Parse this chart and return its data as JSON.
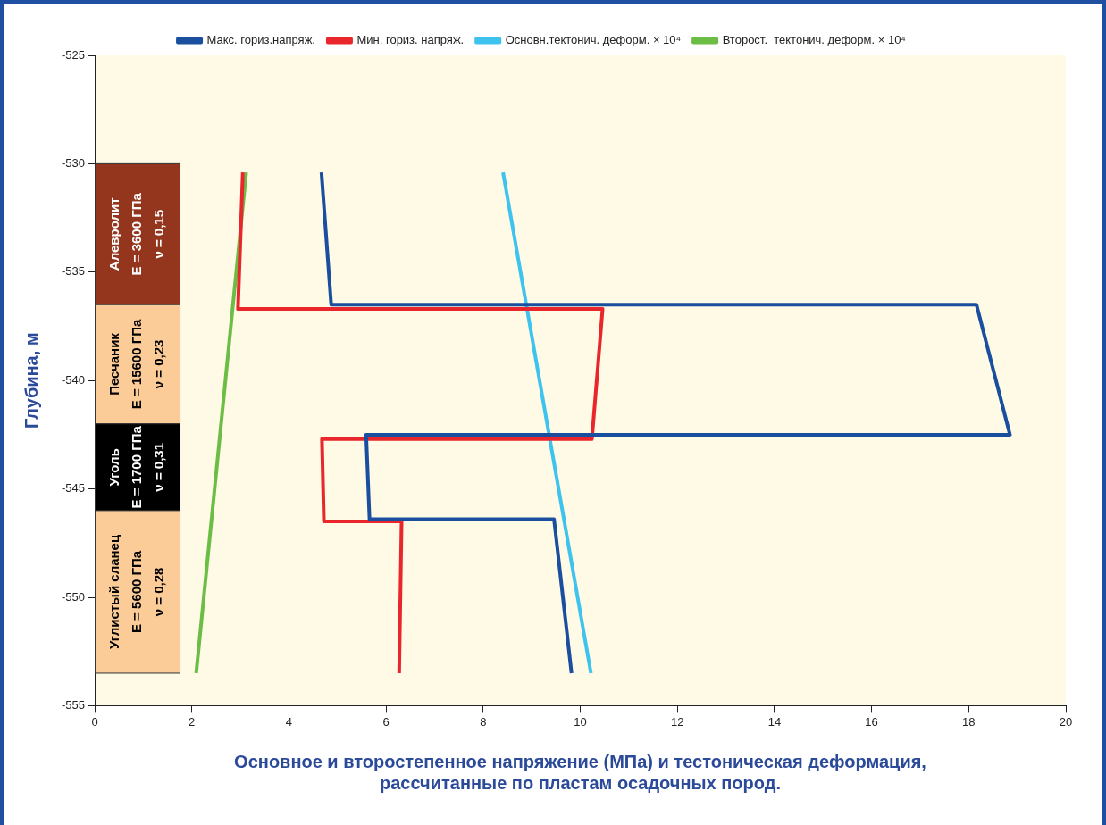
{
  "chart_data": {
    "type": "line",
    "xlabel": "Основное и второстепенное напряжение (МПа) и тестоническая деформация,\nрассчитанные по пластам осадочных пород.",
    "ylabel": "Глубина, м",
    "xlim": [
      0,
      20
    ],
    "xticks": [
      0,
      2,
      4,
      6,
      8,
      10,
      12,
      14,
      16,
      18,
      20
    ],
    "ylim": [
      -555,
      -525
    ],
    "yticks": [
      -555,
      -550,
      -545,
      -540,
      -535,
      -530,
      -525
    ],
    "grid": false,
    "legend": "top",
    "marker": "none",
    "line_style": "solid",
    "series": [
      {
        "name": "Макс. гориз.напряж.",
        "color": "#1a4e9e",
        "x": [
          4.67,
          4.87,
          18.16,
          18.85,
          5.59,
          5.66,
          9.46,
          9.82
        ],
        "values": [
          -530.4,
          -536.5,
          -536.5,
          -542.5,
          -542.5,
          -546.4,
          -546.4,
          -553.5
        ]
      },
      {
        "name": "Мин. гориз. напряж.",
        "color": "#e8262c",
        "x": [
          3.05,
          2.95,
          10.46,
          10.24,
          4.68,
          4.72,
          6.32,
          6.27
        ],
        "values": [
          -530.4,
          -536.7,
          -536.7,
          -542.7,
          -542.7,
          -546.5,
          -546.5,
          -553.5
        ]
      },
      {
        "name": "Основн.тектонич. деформ. × 10⁴",
        "color": "#3ec3ee",
        "x": [
          8.41,
          10.22
        ],
        "values": [
          -530.4,
          -553.5
        ]
      },
      {
        "name": "Второст.  тектонич. деформ. × 10⁴",
        "color": "#6cbd45",
        "x": [
          3.12,
          2.09
        ],
        "values": [
          -530.4,
          -553.5
        ]
      }
    ],
    "bands": [
      {
        "axis": "y",
        "from": -530,
        "to": -536.5,
        "label": "Алевролит\nE = 3600 ГПа\nν = 0,15",
        "color": "#94361e"
      },
      {
        "axis": "y",
        "from": -536.5,
        "to": -542,
        "label": "Песчаник\nE = 15600 ГПа\nν = 0,23",
        "color": "#fbcb98"
      },
      {
        "axis": "y",
        "from": -542,
        "to": -546,
        "label": "Уголь\nE = 1700 ГПа\nν = 0,31",
        "color": "#000000"
      },
      {
        "axis": "y",
        "from": -546,
        "to": -553.5,
        "label": "Углистый сланец\nE = 5600 ГПа\nν = 0,28",
        "color": "#fbcb98"
      }
    ]
  }
}
